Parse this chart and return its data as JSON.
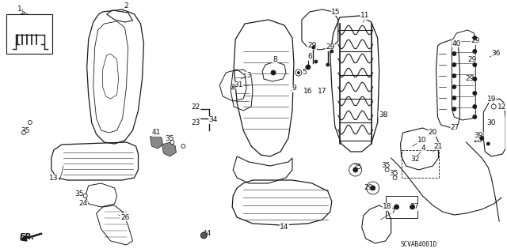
{
  "bg_color": "#ffffff",
  "diagram_code": "SCVAB4001D",
  "fig_width": 6.4,
  "fig_height": 3.19,
  "dpi": 100,
  "line_color": "#1a1a1a",
  "text_color": "#111111",
  "label_fontsize": 6.5
}
